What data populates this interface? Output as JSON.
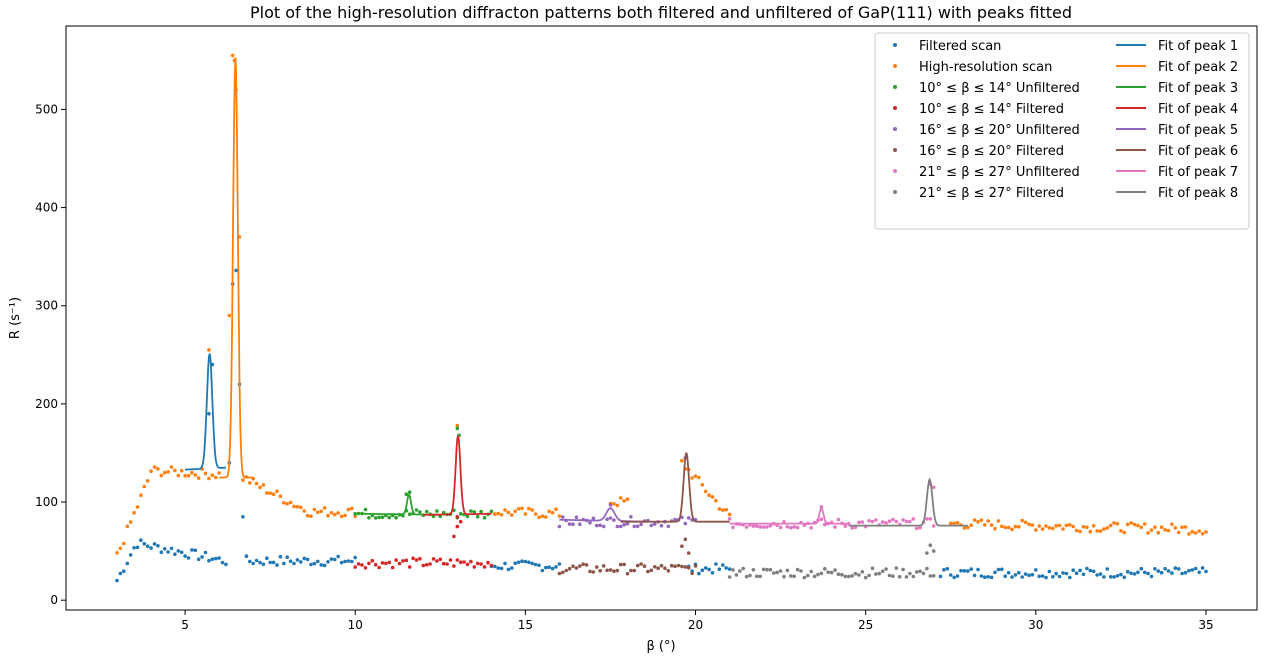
{
  "chart_data": {
    "type": "scatter",
    "title": "Plot of the high-resolution diffracton patterns both filtered and unfiltered of GaP(111) with peaks fitted",
    "xlabel": "β (°)",
    "ylabel": "R (s⁻¹)",
    "xlim": [
      1.5,
      36.5
    ],
    "ylim": [
      -10,
      585
    ],
    "x_ticks": [
      5,
      10,
      15,
      20,
      25,
      30,
      35
    ],
    "y_ticks": [
      0,
      100,
      200,
      300,
      400,
      500
    ],
    "grid": false,
    "legend_position": "top-right",
    "scatter_series": [
      {
        "name": "Filtered scan",
        "color": "#1f77b4",
        "segments": [
          [
            3.0,
            6.2,
            20,
            40,
            "mf"
          ],
          [
            6.8,
            10.0,
            40,
            40
          ],
          [
            14.0,
            16.0,
            35,
            35
          ],
          [
            19.8,
            21.0,
            32,
            32
          ],
          [
            27.2,
            35.0,
            28,
            28
          ]
        ],
        "extra": [
          [
            5.7,
            190
          ],
          [
            5.8,
            240
          ],
          [
            6.3,
            140
          ],
          [
            6.4,
            322
          ],
          [
            6.5,
            336
          ],
          [
            6.6,
            220
          ],
          [
            6.7,
            85
          ]
        ]
      },
      {
        "name": "High-resolution scan",
        "color": "#ff7f0e",
        "segments": [
          [
            3.0,
            6.0,
            45,
            130,
            "mh"
          ],
          [
            6.7,
            10.0,
            120,
            90,
            "d"
          ],
          [
            14.0,
            16.0,
            90,
            88
          ],
          [
            17.5,
            18.0,
            100,
            100
          ],
          [
            19.6,
            21.0,
            140,
            85
          ],
          [
            27.5,
            35.0,
            78,
            72
          ]
        ],
        "extra": [
          [
            5.7,
            255
          ],
          [
            6.3,
            290
          ],
          [
            6.4,
            555
          ],
          [
            6.45,
            550
          ],
          [
            6.5,
            520
          ],
          [
            6.6,
            370
          ],
          [
            13.0,
            178
          ]
        ]
      },
      {
        "name": "10° ≤ β ≤ 14° Unfiltered",
        "color": "#2ca02c",
        "segments": [
          [
            10.0,
            14.0,
            88,
            88
          ]
        ],
        "extra": [
          [
            11.5,
            108
          ],
          [
            11.6,
            110
          ],
          [
            13.0,
            175
          ],
          [
            13.05,
            168
          ]
        ]
      },
      {
        "name": "10° ≤ β ≤ 14° Filtered",
        "color": "#d62728",
        "segments": [
          [
            10.0,
            14.0,
            38,
            38
          ]
        ],
        "extra": [
          [
            12.9,
            65
          ],
          [
            13.0,
            85
          ],
          [
            13.1,
            80
          ],
          [
            13.0,
            75
          ]
        ]
      },
      {
        "name": "16° ≤ β ≤ 20° Unfiltered",
        "color": "#9467bd",
        "segments": [
          [
            16.0,
            20.0,
            80,
            80
          ]
        ],
        "extra": [
          [
            17.5,
            97
          ],
          [
            19.7,
            145
          ]
        ]
      },
      {
        "name": "16° ≤ β ≤ 20° Filtered",
        "color": "#8c564b",
        "segments": [
          [
            16.0,
            20.0,
            32,
            32
          ]
        ],
        "extra": [
          [
            19.6,
            55
          ],
          [
            19.7,
            62
          ],
          [
            19.8,
            48
          ]
        ]
      },
      {
        "name": "21° ≤ β ≤ 27° Unfiltered",
        "color": "#e377c2",
        "segments": [
          [
            21.0,
            27.0,
            78,
            78
          ]
        ],
        "extra": [
          [
            23.7,
            95
          ],
          [
            26.9,
            118
          ],
          [
            27.0,
            115
          ]
        ]
      },
      {
        "name": "21° ≤ β ≤ 27° Filtered",
        "color": "#7f7f7f",
        "segments": [
          [
            21.0,
            27.0,
            28,
            28
          ]
        ],
        "extra": [
          [
            26.8,
            48
          ],
          [
            26.9,
            56
          ],
          [
            27.0,
            50
          ]
        ]
      }
    ],
    "fit_series": [
      {
        "name": "Fit of peak 1",
        "color": "#1f77b4",
        "x_range": [
          5.0,
          6.2
        ],
        "baseline": [
          133,
          135
        ],
        "center": 5.72,
        "amplitude": 117,
        "width": 0.08
      },
      {
        "name": "Fit of peak 2",
        "color": "#ff7f0e",
        "x_range": [
          6.0,
          7.0
        ],
        "baseline": [
          125,
          125
        ],
        "center": 6.48,
        "amplitude": 428,
        "width": 0.07
      },
      {
        "name": "Fit of peak 3",
        "color": "#2ca02c",
        "x_range": [
          10.2,
          12.5
        ],
        "baseline": [
          88,
          87
        ],
        "center": 11.58,
        "amplitude": 20,
        "width": 0.06
      },
      {
        "name": "Fit of peak 4",
        "color": "#d62728",
        "x_range": [
          12.0,
          14.0
        ],
        "baseline": [
          87,
          88
        ],
        "center": 13.02,
        "amplitude": 80,
        "width": 0.07
      },
      {
        "name": "Fit of peak 5",
        "color": "#9467bd",
        "x_range": [
          16.0,
          18.5
        ],
        "baseline": [
          82,
          80
        ],
        "center": 17.5,
        "amplitude": 13,
        "width": 0.12
      },
      {
        "name": "Fit of peak 6",
        "color": "#8c564b",
        "x_range": [
          17.8,
          21.0
        ],
        "baseline": [
          80,
          80
        ],
        "center": 19.73,
        "amplitude": 70,
        "width": 0.08
      },
      {
        "name": "Fit of peak 7",
        "color": "#e377c2",
        "x_range": [
          21.0,
          24.5
        ],
        "baseline": [
          78,
          78
        ],
        "center": 23.7,
        "amplitude": 16,
        "width": 0.06
      },
      {
        "name": "Fit of peak 8",
        "color": "#7f7f7f",
        "x_range": [
          24.5,
          28.0
        ],
        "baseline": [
          76,
          76
        ],
        "center": 26.88,
        "amplitude": 47,
        "width": 0.08
      }
    ]
  }
}
